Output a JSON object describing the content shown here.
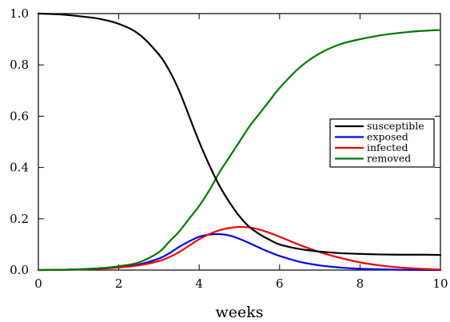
{
  "chart_data": {
    "type": "line",
    "title": "",
    "xlabel": "weeks",
    "ylabel": "",
    "xlim": [
      0,
      10
    ],
    "ylim": [
      0,
      1.0
    ],
    "x_ticks": [
      0,
      2,
      4,
      6,
      8,
      10
    ],
    "y_ticks": [
      0.0,
      0.2,
      0.4,
      0.6,
      0.8,
      1.0
    ],
    "x_tick_labels": [
      "0",
      "2",
      "4",
      "6",
      "8",
      "10"
    ],
    "y_tick_labels": [
      "0.0",
      "0.2",
      "0.4",
      "0.6",
      "0.8",
      "1.0"
    ],
    "grid": false,
    "legend_placement": "center-right",
    "x": [
      0,
      0.5,
      1,
      1.5,
      2,
      2.5,
      3,
      3.25,
      3.5,
      3.75,
      4,
      4.25,
      4.5,
      4.75,
      5,
      5.25,
      5.5,
      5.75,
      6,
      6.5,
      7,
      7.5,
      8,
      8.5,
      9,
      9.5,
      10
    ],
    "series": [
      {
        "name": "susceptible",
        "color": "#000000",
        "values": [
          1.0,
          0.997,
          0.99,
          0.98,
          0.96,
          0.92,
          0.84,
          0.78,
          0.7,
          0.6,
          0.5,
          0.41,
          0.33,
          0.265,
          0.21,
          0.168,
          0.14,
          0.118,
          0.1,
          0.082,
          0.072,
          0.066,
          0.063,
          0.061,
          0.06,
          0.06,
          0.059
        ]
      },
      {
        "name": "exposed",
        "color": "#0000ee",
        "values": [
          0.0,
          0.001,
          0.003,
          0.006,
          0.012,
          0.022,
          0.045,
          0.065,
          0.09,
          0.112,
          0.13,
          0.138,
          0.14,
          0.135,
          0.122,
          0.105,
          0.087,
          0.07,
          0.055,
          0.032,
          0.018,
          0.01,
          0.005,
          0.003,
          0.001,
          0.0005,
          0.0
        ]
      },
      {
        "name": "infected",
        "color": "#ee0000",
        "values": [
          0.0,
          0.0008,
          0.002,
          0.005,
          0.01,
          0.018,
          0.035,
          0.05,
          0.07,
          0.095,
          0.12,
          0.14,
          0.155,
          0.164,
          0.168,
          0.166,
          0.158,
          0.145,
          0.13,
          0.098,
          0.07,
          0.048,
          0.03,
          0.018,
          0.01,
          0.005,
          0.002
        ]
      },
      {
        "name": "removed",
        "color": "#007700",
        "values": [
          0.0,
          0.001,
          0.003,
          0.007,
          0.015,
          0.03,
          0.07,
          0.11,
          0.15,
          0.2,
          0.25,
          0.31,
          0.38,
          0.44,
          0.5,
          0.56,
          0.61,
          0.66,
          0.71,
          0.79,
          0.845,
          0.88,
          0.9,
          0.915,
          0.925,
          0.932,
          0.936
        ]
      }
    ]
  }
}
